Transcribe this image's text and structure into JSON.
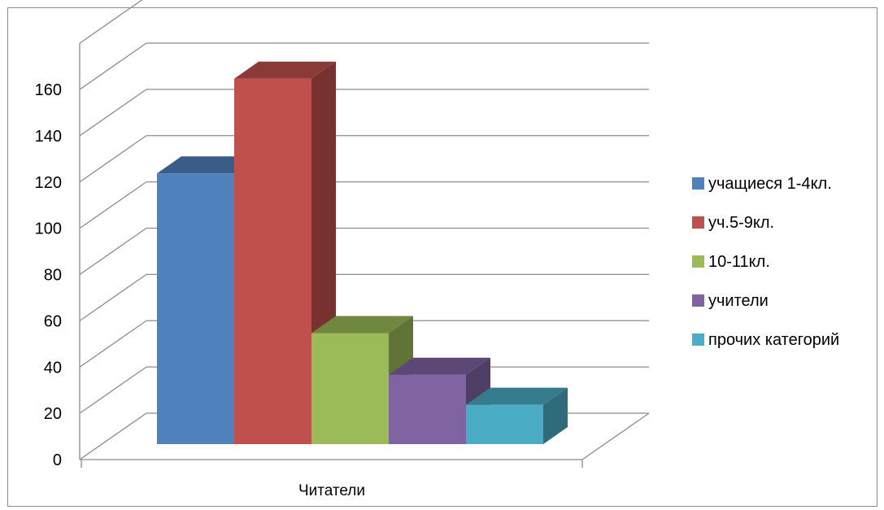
{
  "chart_data": {
    "type": "bar",
    "categories": [
      "Читатели"
    ],
    "series": [
      {
        "name": "учащиеся 1-4кл.",
        "values": [
          117
        ],
        "color": "#4f81bd"
      },
      {
        "name": "уч.5-9кл.",
        "values": [
          158
        ],
        "color": "#c0504d"
      },
      {
        "name": "10-11кл.",
        "values": [
          48
        ],
        "color": "#9bbb59"
      },
      {
        "name": "учители",
        "values": [
          30
        ],
        "color": "#8064a2"
      },
      {
        "name": "прочих категорий",
        "values": [
          17
        ],
        "color": "#4bacc6"
      }
    ],
    "yticks": [
      "0",
      "20",
      "40",
      "60",
      "80",
      "100",
      "120",
      "140",
      "160"
    ],
    "ylim": [
      0,
      160
    ],
    "grid": true,
    "legend_position": "right",
    "style": "3d-column"
  }
}
